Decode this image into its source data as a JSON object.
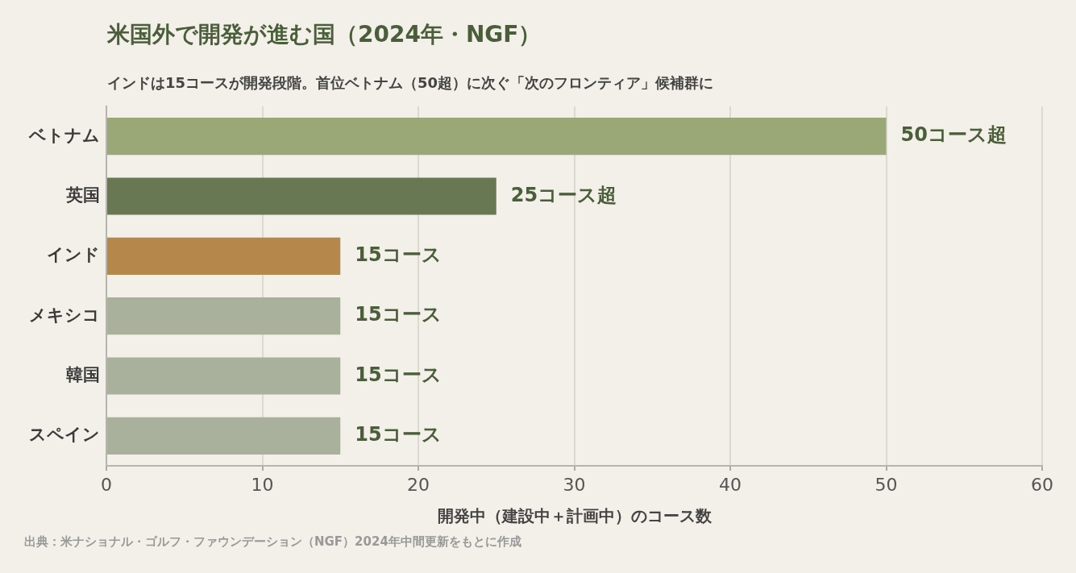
{
  "chart_data": {
    "type": "bar",
    "orientation": "horizontal",
    "title": "米国外で開発が進む国（2024年・NGF）",
    "subtitle": "インドは15コースが開発段階。首位ベトナム（50超）に次ぐ「次のフロンティア」候補群に",
    "xlabel": "開発中（建設中＋計画中）のコース数",
    "annotations": [
      "出典：米ナショナル・ゴルフ・ファウンデーション（NGF）2024年中間更新をもとに作成"
    ],
    "categories": [
      "ベトナム",
      "英国",
      "インド",
      "メキシコ",
      "韓国",
      "スペイン"
    ],
    "values": [
      50,
      25,
      15,
      15,
      15,
      15
    ],
    "colors": [
      "#9aa877",
      "#687852",
      "#b5874a",
      "#a9b19c",
      "#a9b19c",
      "#a9b19c"
    ],
    "value_labels": [
      "50コース超",
      "25コース超",
      "15コース",
      "15コース",
      "15コース",
      "15コース"
    ],
    "xlim": [
      0,
      60
    ],
    "xticks": [
      0,
      10,
      20,
      30,
      40,
      50,
      60
    ],
    "grid": "x",
    "legend": false
  }
}
